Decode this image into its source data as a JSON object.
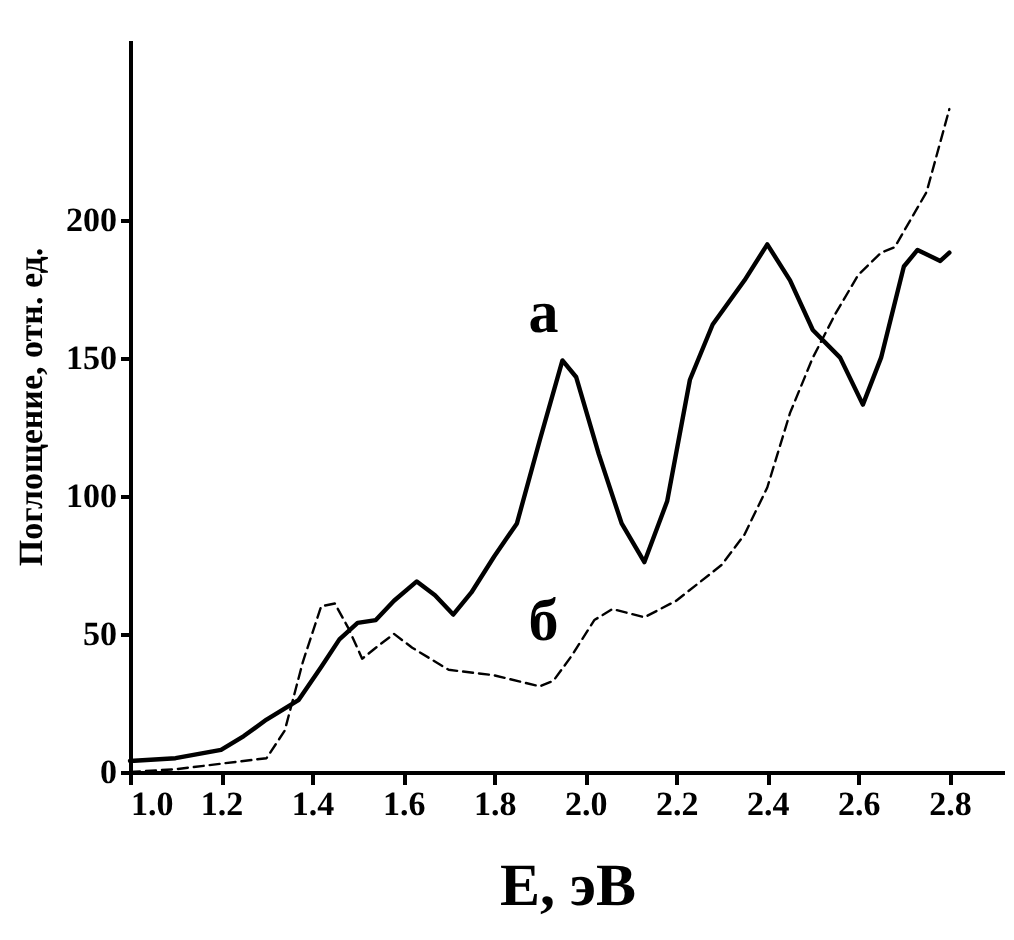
{
  "chart_data": {
    "type": "line",
    "xlabel": "E, эВ",
    "ylabel": "Поглощение, отн. ед.",
    "xlim": [
      1.0,
      2.92
    ],
    "ylim": [
      0,
      265
    ],
    "xticks": [
      {
        "value": 1.0,
        "label": "1.0"
      },
      1.2,
      1.4,
      1.6,
      1.8,
      {
        "value": 2.0,
        "label": "2.0"
      },
      2.2,
      2.4,
      2.6,
      2.8
    ],
    "yticks": [
      0,
      50,
      100,
      150,
      200
    ],
    "grid": false,
    "series": [
      {
        "name": "а",
        "color": "#000000",
        "line_style": "solid",
        "x": [
          1.0,
          1.1,
          1.2,
          1.25,
          1.3,
          1.37,
          1.42,
          1.46,
          1.5,
          1.54,
          1.58,
          1.63,
          1.67,
          1.71,
          1.75,
          1.8,
          1.85,
          1.9,
          1.95,
          1.98,
          2.03,
          2.08,
          2.13,
          2.18,
          2.23,
          2.28,
          2.35,
          2.4,
          2.45,
          2.5,
          2.56,
          2.61,
          2.65,
          2.7,
          2.73,
          2.78,
          2.8
        ],
        "values": [
          4,
          5,
          8,
          13,
          19,
          26,
          38,
          48,
          54,
          55,
          62,
          69,
          64,
          57,
          65,
          78,
          90,
          120,
          149,
          143,
          115,
          90,
          76,
          98,
          142,
          162,
          178,
          191,
          178,
          160,
          150,
          133,
          150,
          183,
          189,
          185,
          188
        ]
      },
      {
        "name": "б",
        "color": "#000000",
        "line_style": "dashed",
        "x": [
          1.0,
          1.1,
          1.2,
          1.3,
          1.34,
          1.38,
          1.42,
          1.45,
          1.48,
          1.51,
          1.54,
          1.58,
          1.62,
          1.7,
          1.8,
          1.9,
          1.93,
          1.97,
          2.02,
          2.06,
          2.13,
          2.2,
          2.3,
          2.35,
          2.4,
          2.45,
          2.5,
          2.55,
          2.6,
          2.65,
          2.68,
          2.75,
          2.8
        ],
        "values": [
          0,
          1,
          3,
          5,
          15,
          40,
          60,
          61,
          52,
          41,
          45,
          50,
          45,
          37,
          35,
          31,
          33,
          42,
          55,
          59,
          56,
          62,
          75,
          86,
          103,
          130,
          150,
          166,
          180,
          188,
          190,
          210,
          240
        ]
      }
    ]
  }
}
